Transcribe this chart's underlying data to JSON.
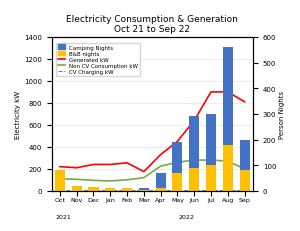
{
  "title": "Electricity Consumption & Generation",
  "subtitle": "Oct 21 to Sep 22",
  "ylabel_left": "Electricity kW",
  "ylabel_right": "Person Nights",
  "months": [
    "Oct",
    "Nov",
    "Dec",
    "Jan",
    "Feb",
    "Mar",
    "Apr",
    "May",
    "Jun",
    "Jul",
    "Aug",
    "Sep"
  ],
  "year_labels": [
    [
      "Oct",
      "2021"
    ],
    [
      "Jan",
      "2022"
    ]
  ],
  "ylim_left": [
    0,
    1400
  ],
  "ylim_right": [
    0,
    600
  ],
  "camping_nights": [
    0,
    0,
    0,
    0,
    0,
    5,
    60,
    120,
    200,
    200,
    380,
    120
  ],
  "bb_nights": [
    80,
    20,
    15,
    10,
    10,
    5,
    10,
    70,
    90,
    100,
    180,
    80
  ],
  "generated_kw": [
    220,
    210,
    240,
    240,
    255,
    175,
    330,
    450,
    640,
    900,
    900,
    810
  ],
  "non_cv_consumption_kw": [
    110,
    105,
    95,
    90,
    100,
    120,
    225,
    260,
    280,
    280,
    270,
    200
  ],
  "cv_charging_kw": [
    10,
    10,
    10,
    10,
    10,
    10,
    10,
    10,
    10,
    10,
    10,
    10
  ],
  "bar_color_camping": "#4472C4",
  "bar_color_bb": "#FFC000",
  "line_color_generated": "#FF0000",
  "line_color_non_cv": "#70AD47",
  "line_color_cv": "#7F7F7F",
  "background_color": "#FFFFFF",
  "legend_labels": [
    "Camping Nights",
    "B&B nights",
    "Generated kW",
    "Non CV Consumption kW",
    "CV Charging kW"
  ]
}
